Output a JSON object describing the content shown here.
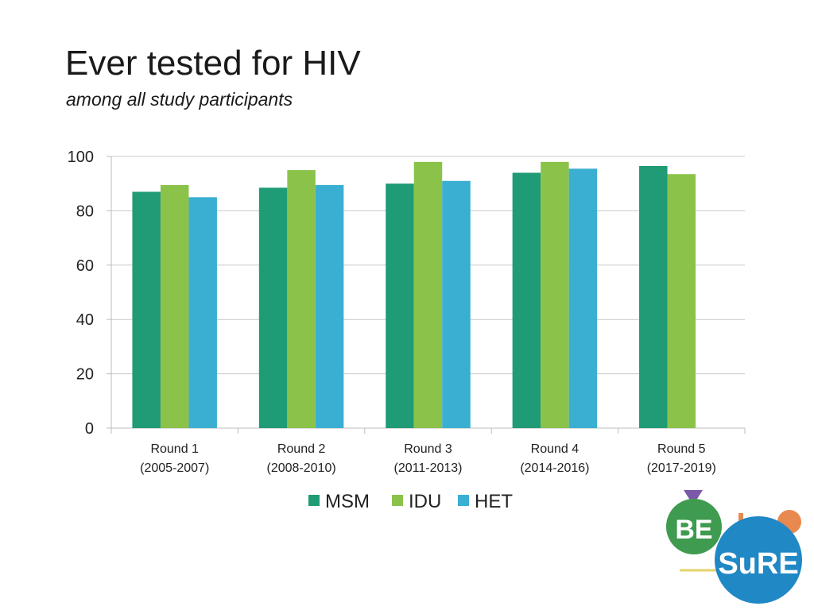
{
  "slide": {
    "title": "Ever tested for HIV",
    "subtitle": "among all study participants"
  },
  "chart_data": {
    "type": "bar",
    "categories": [
      [
        "Round 1",
        "(2005-2007)"
      ],
      [
        "Round 2",
        "(2008-2010)"
      ],
      [
        "Round 3",
        "(2011-2013)"
      ],
      [
        "Round 4",
        "(2014-2016)"
      ],
      [
        "Round 5",
        "(2017-2019)"
      ]
    ],
    "series": [
      {
        "name": "MSM",
        "color": "#1f9b75",
        "values": [
          87,
          88.5,
          90,
          94,
          96.5
        ]
      },
      {
        "name": "IDU",
        "color": "#8bc34a",
        "values": [
          89.5,
          95,
          98,
          98,
          93.5
        ]
      },
      {
        "name": "HET",
        "color": "#3aafd1",
        "values": [
          85,
          89.5,
          91,
          95.5,
          null
        ]
      }
    ],
    "ylim": [
      0,
      100
    ],
    "yticks": [
      0,
      20,
      40,
      60,
      80,
      100
    ],
    "grid": true,
    "legend_position": "bottom-center",
    "xlabel": "",
    "ylabel": ""
  },
  "logo": {
    "text_top": "BE",
    "text_bottom": "SuRE",
    "colors": {
      "green": "#3f9b4f",
      "blue": "#1f88c5",
      "orange": "#e8894f",
      "purple": "#7a5aa8",
      "yellow": "#e6d36a"
    }
  }
}
